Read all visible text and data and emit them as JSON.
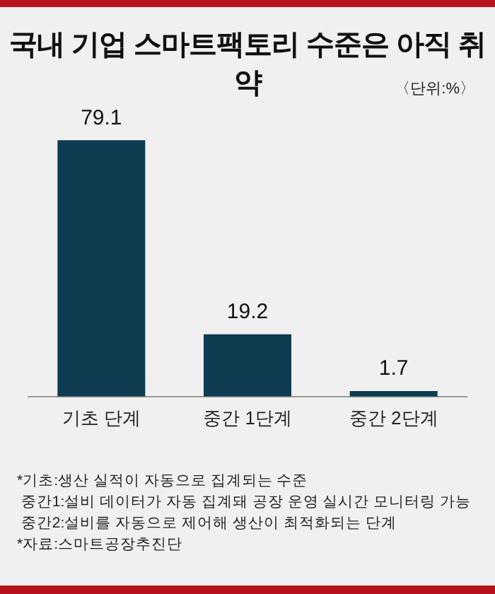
{
  "chart_data": {
    "type": "bar",
    "title": "국내 기업 스마트팩토리 수준은 아직 취약",
    "subtitle": "〈단위:%〉",
    "categories": [
      "기초 단계",
      "중간 1단계",
      "중간 2단계"
    ],
    "values": [
      79.1,
      19.2,
      1.7
    ],
    "color": "#0e3c50",
    "data_labels": true,
    "grid": false,
    "legend": false,
    "annotations": [
      "*기초:생산 실적이 자동으로 집계되는 수준",
      " 중간1:설비 데이터가 자동 집계돼 공장 운영 실시간 모니터링 가능",
      " 중간2:설비를 자동으로 제어해 생산이 최적화되는 단계",
      "*자료:스마트공장추진단"
    ]
  }
}
